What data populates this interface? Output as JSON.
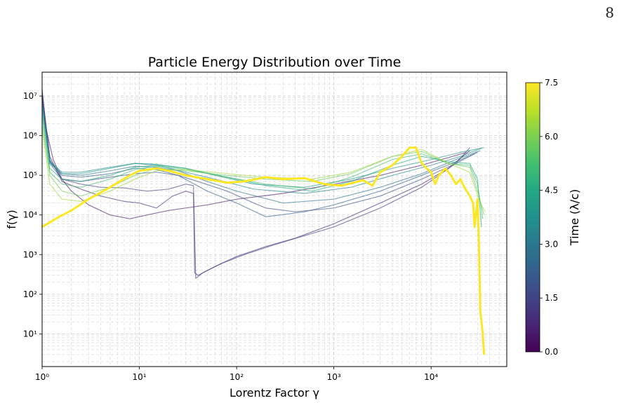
{
  "page_number": "8",
  "colors": {
    "axis": "#000000",
    "grid": "#cccccc",
    "colormap": [
      "#440154",
      "#482475",
      "#414487",
      "#355f8d",
      "#2a788e",
      "#21918c",
      "#22a884",
      "#44bf70",
      "#7ad151",
      "#bddf26",
      "#fde725"
    ]
  },
  "chart_data": {
    "type": "line",
    "title": "Particle Energy Distribution over Time",
    "xlabel": "Lorentz Factor γ",
    "ylabel": "f(γ)",
    "xscale": "log",
    "yscale": "log",
    "xlim": [
      1,
      60000
    ],
    "ylim": [
      1.5,
      40000000
    ],
    "x_ticks": [
      {
        "value": 1,
        "label": "10⁰"
      },
      {
        "value": 10,
        "label": "10¹"
      },
      {
        "value": 100,
        "label": "10²"
      },
      {
        "value": 1000,
        "label": "10³"
      },
      {
        "value": 10000,
        "label": "10⁴"
      }
    ],
    "y_ticks": [
      {
        "value": 10,
        "label": "10¹"
      },
      {
        "value": 100,
        "label": "10²"
      },
      {
        "value": 1000,
        "label": "10³"
      },
      {
        "value": 10000,
        "label": "10⁴"
      },
      {
        "value": 100000,
        "label": "10⁵"
      },
      {
        "value": 1000000,
        "label": "10⁶"
      },
      {
        "value": 10000000,
        "label": "10⁷"
      }
    ],
    "grid": true,
    "colorbar": {
      "label": "Time (λ/c)",
      "range": [
        0.0,
        7.5
      ],
      "ticks": [
        "0.0",
        "1.5",
        "3.0",
        "4.5",
        "6.0",
        "7.5"
      ]
    },
    "series": [
      {
        "time": 0.5,
        "points": [
          [
            1,
            15000000
          ],
          [
            1.1,
            1500000
          ],
          [
            1.3,
            250000
          ],
          [
            1.6,
            80000
          ],
          [
            2,
            40000
          ],
          [
            3,
            18000
          ],
          [
            5,
            10000
          ],
          [
            8,
            8000
          ],
          [
            12,
            10000
          ],
          [
            20,
            13000
          ],
          [
            30,
            15000
          ],
          [
            50,
            18000
          ],
          [
            100,
            25000
          ],
          [
            300,
            35000
          ],
          [
            1000,
            60000
          ],
          [
            3000,
            100000
          ],
          [
            8000,
            180000
          ],
          [
            15000,
            280000
          ],
          [
            23000,
            380000
          ]
        ]
      },
      {
        "time": 0.9,
        "points": [
          [
            1,
            12000000
          ],
          [
            1.2,
            300000
          ],
          [
            1.6,
            70000
          ],
          [
            2.5,
            45000
          ],
          [
            4,
            30000
          ],
          [
            7,
            22000
          ],
          [
            10,
            20000
          ],
          [
            15,
            15000
          ],
          [
            22,
            30000
          ],
          [
            30,
            40000
          ],
          [
            36,
            35000
          ],
          [
            37,
            350
          ],
          [
            40,
            300
          ],
          [
            60,
            500
          ],
          [
            100,
            900
          ],
          [
            200,
            1600
          ],
          [
            400,
            2600
          ],
          [
            1000,
            6000
          ],
          [
            3000,
            20000
          ],
          [
            8000,
            60000
          ],
          [
            15000,
            150000
          ],
          [
            25000,
            420000
          ]
        ]
      },
      {
        "time": 1.3,
        "points": [
          [
            1,
            10000000
          ],
          [
            1.2,
            250000
          ],
          [
            1.6,
            80000
          ],
          [
            2.5,
            60000
          ],
          [
            4,
            50000
          ],
          [
            7,
            48000
          ],
          [
            12,
            40000
          ],
          [
            20,
            45000
          ],
          [
            30,
            60000
          ],
          [
            36,
            55000
          ],
          [
            38,
            250
          ],
          [
            45,
            350
          ],
          [
            70,
            600
          ],
          [
            120,
            1000
          ],
          [
            250,
            1800
          ],
          [
            500,
            3000
          ],
          [
            1000,
            5000
          ],
          [
            3000,
            15000
          ],
          [
            8000,
            50000
          ],
          [
            18000,
            200000
          ],
          [
            25000,
            500000
          ]
        ]
      },
      {
        "time": 1.8,
        "points": [
          [
            1,
            9000000
          ],
          [
            1.2,
            200000
          ],
          [
            1.6,
            80000
          ],
          [
            2.5,
            70000
          ],
          [
            5,
            90000
          ],
          [
            9,
            110000
          ],
          [
            15,
            120000
          ],
          [
            25,
            100000
          ],
          [
            40,
            70000
          ],
          [
            80,
            40000
          ],
          [
            150,
            20000
          ],
          [
            200,
            15000
          ],
          [
            400,
            12000
          ],
          [
            1000,
            15000
          ],
          [
            3000,
            30000
          ],
          [
            8000,
            80000
          ],
          [
            18000,
            200000
          ],
          [
            28000,
            350000
          ]
        ]
      },
      {
        "time": 2.3,
        "points": [
          [
            1,
            8000000
          ],
          [
            1.2,
            220000
          ],
          [
            1.6,
            100000
          ],
          [
            2.5,
            90000
          ],
          [
            5,
            110000
          ],
          [
            9,
            150000
          ],
          [
            15,
            140000
          ],
          [
            25,
            100000
          ],
          [
            50,
            40000
          ],
          [
            100,
            20000
          ],
          [
            200,
            9000
          ],
          [
            500,
            12000
          ],
          [
            1000,
            18000
          ],
          [
            3000,
            40000
          ],
          [
            8000,
            100000
          ],
          [
            18000,
            220000
          ],
          [
            30000,
            380000
          ]
        ]
      },
      {
        "time": 2.9,
        "points": [
          [
            1,
            7000000
          ],
          [
            1.2,
            220000
          ],
          [
            1.6,
            110000
          ],
          [
            2.5,
            100000
          ],
          [
            5,
            130000
          ],
          [
            9,
            170000
          ],
          [
            15,
            160000
          ],
          [
            25,
            130000
          ],
          [
            50,
            70000
          ],
          [
            100,
            40000
          ],
          [
            300,
            20000
          ],
          [
            1000,
            25000
          ],
          [
            3000,
            50000
          ],
          [
            8000,
            110000
          ],
          [
            18000,
            250000
          ],
          [
            32000,
            420000
          ]
        ]
      },
      {
        "time": 3.5,
        "points": [
          [
            1,
            6000000
          ],
          [
            1.2,
            230000
          ],
          [
            1.6,
            120000
          ],
          [
            2.5,
            120000
          ],
          [
            5,
            160000
          ],
          [
            9,
            200000
          ],
          [
            15,
            180000
          ],
          [
            30,
            120000
          ],
          [
            60,
            80000
          ],
          [
            150,
            45000
          ],
          [
            500,
            35000
          ],
          [
            1500,
            50000
          ],
          [
            4000,
            100000
          ],
          [
            10000,
            180000
          ],
          [
            20000,
            300000
          ],
          [
            33000,
            480000
          ]
        ]
      },
      {
        "time": 4.0,
        "points": [
          [
            1,
            5000000
          ],
          [
            1.2,
            200000
          ],
          [
            1.6,
            110000
          ],
          [
            2.5,
            110000
          ],
          [
            5,
            150000
          ],
          [
            9,
            200000
          ],
          [
            15,
            190000
          ],
          [
            30,
            150000
          ],
          [
            60,
            100000
          ],
          [
            150,
            60000
          ],
          [
            500,
            50000
          ],
          [
            1500,
            80000
          ],
          [
            4000,
            150000
          ],
          [
            10000,
            250000
          ],
          [
            20000,
            380000
          ],
          [
            35000,
            500000
          ]
        ]
      },
      {
        "time": 4.6,
        "points": [
          [
            1,
            4000000
          ],
          [
            1.2,
            150000
          ],
          [
            1.6,
            80000
          ],
          [
            2.5,
            70000
          ],
          [
            5,
            100000
          ],
          [
            9,
            160000
          ],
          [
            15,
            180000
          ],
          [
            30,
            150000
          ],
          [
            80,
            90000
          ],
          [
            200,
            55000
          ],
          [
            600,
            40000
          ],
          [
            1500,
            70000
          ],
          [
            4000,
            180000
          ],
          [
            8000,
            300000
          ],
          [
            15000,
            220000
          ],
          [
            25000,
            200000
          ],
          [
            30000,
            80000
          ],
          [
            33000,
            5000
          ]
        ]
      },
      {
        "time": 5.2,
        "points": [
          [
            1,
            3000000
          ],
          [
            1.2,
            120000
          ],
          [
            1.6,
            60000
          ],
          [
            2.5,
            50000
          ],
          [
            5,
            80000
          ],
          [
            9,
            140000
          ],
          [
            15,
            170000
          ],
          [
            30,
            140000
          ],
          [
            80,
            90000
          ],
          [
            200,
            60000
          ],
          [
            600,
            45000
          ],
          [
            1500,
            90000
          ],
          [
            4000,
            250000
          ],
          [
            8000,
            350000
          ],
          [
            15000,
            200000
          ],
          [
            25000,
            180000
          ],
          [
            30000,
            60000
          ],
          [
            34000,
            8000
          ]
        ]
      },
      {
        "time": 5.8,
        "points": [
          [
            1,
            2000000
          ],
          [
            1.2,
            100000
          ],
          [
            1.6,
            40000
          ],
          [
            2.5,
            30000
          ],
          [
            5,
            50000
          ],
          [
            9,
            100000
          ],
          [
            15,
            150000
          ],
          [
            30,
            130000
          ],
          [
            80,
            100000
          ],
          [
            200,
            80000
          ],
          [
            600,
            70000
          ],
          [
            1500,
            110000
          ],
          [
            4000,
            300000
          ],
          [
            8000,
            400000
          ],
          [
            15000,
            200000
          ],
          [
            25000,
            160000
          ],
          [
            30000,
            40000
          ],
          [
            35000,
            10000
          ]
        ]
      },
      {
        "time": 6.4,
        "points": [
          [
            1,
            1500000
          ],
          [
            1.2,
            60000
          ],
          [
            1.6,
            25000
          ],
          [
            2.5,
            22000
          ],
          [
            5,
            40000
          ],
          [
            9,
            80000
          ],
          [
            15,
            130000
          ],
          [
            30,
            140000
          ],
          [
            80,
            110000
          ],
          [
            200,
            90000
          ],
          [
            600,
            80000
          ],
          [
            1500,
            120000
          ],
          [
            4000,
            300000
          ],
          [
            8000,
            450000
          ],
          [
            15000,
            200000
          ],
          [
            25000,
            120000
          ],
          [
            32000,
            20000
          ],
          [
            36000,
            12000
          ]
        ]
      },
      {
        "time": 7.5,
        "points": [
          [
            1,
            5000
          ],
          [
            1.5,
            9000
          ],
          [
            2,
            13000
          ],
          [
            3,
            25000
          ],
          [
            5,
            50000
          ],
          [
            8,
            100000
          ],
          [
            10,
            130000
          ],
          [
            15,
            150000
          ],
          [
            20,
            130000
          ],
          [
            30,
            100000
          ],
          [
            50,
            80000
          ],
          [
            80,
            65000
          ],
          [
            120,
            70000
          ],
          [
            200,
            90000
          ],
          [
            300,
            80000
          ],
          [
            500,
            85000
          ],
          [
            800,
            60000
          ],
          [
            1200,
            55000
          ],
          [
            2000,
            75000
          ],
          [
            2500,
            55000
          ],
          [
            3000,
            120000
          ],
          [
            4000,
            180000
          ],
          [
            5000,
            300000
          ],
          [
            6000,
            500000
          ],
          [
            7000,
            500000
          ],
          [
            8000,
            200000
          ],
          [
            9000,
            150000
          ],
          [
            10000,
            120000
          ],
          [
            11000,
            60000
          ],
          [
            12000,
            100000
          ],
          [
            14000,
            150000
          ],
          [
            16000,
            100000
          ],
          [
            18000,
            60000
          ],
          [
            20000,
            80000
          ],
          [
            22000,
            50000
          ],
          [
            25000,
            30000
          ],
          [
            27000,
            20000
          ],
          [
            28000,
            5000
          ],
          [
            30000,
            25000
          ],
          [
            31000,
            2000
          ],
          [
            32000,
            40
          ],
          [
            33000,
            20
          ],
          [
            34000,
            10
          ],
          [
            35000,
            3
          ]
        ]
      }
    ]
  }
}
